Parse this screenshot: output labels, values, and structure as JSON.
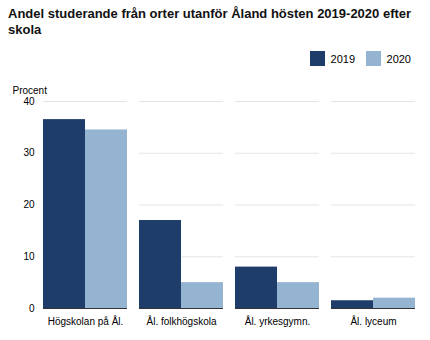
{
  "chart_data": {
    "type": "bar",
    "title": "Andel studerande från orter utanför Åland hösten 2019-2020 efter skola",
    "ylabel": "Procent",
    "categories": [
      "Högskolan på Ål.",
      "Ål. folkhögskola",
      "Ål. yrkesgymn.",
      "Ål. lyceum"
    ],
    "series": [
      {
        "name": "2019",
        "color": "#1f3d6b",
        "values": [
          36.5,
          17.0,
          8.0,
          1.5
        ]
      },
      {
        "name": "2020",
        "color": "#95b4d2",
        "values": [
          34.5,
          5.0,
          5.0,
          2.0
        ]
      }
    ],
    "ylim": [
      0,
      40
    ],
    "yticks": [
      0,
      10,
      20,
      30,
      40
    ],
    "grid": true,
    "legend": "upper right"
  }
}
